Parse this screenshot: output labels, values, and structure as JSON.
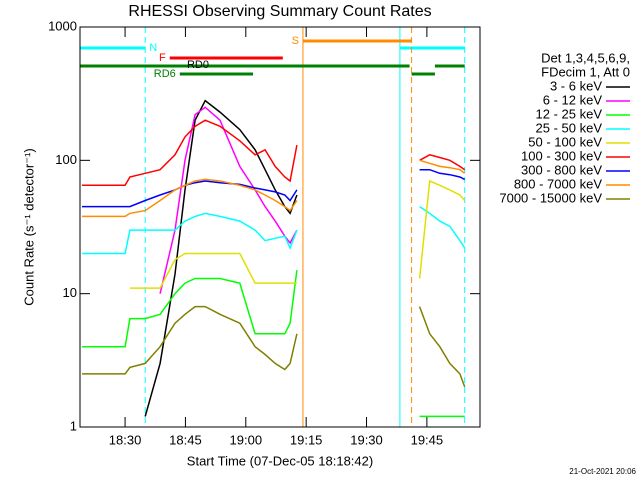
{
  "chart_data": {
    "type": "line",
    "title": "RHESSI Observing Summary Count Rates",
    "xlabel": "Start Time (07-Dec-05 18:18:42)",
    "ylabel": "Count Rate (s⁻¹ detector⁻¹)",
    "timestamp": "21-Oct-2021 20:06",
    "legend_header": [
      "Det 1,3,4,5,6,9,",
      "FDecim 1, Att 0"
    ],
    "ylog": true,
    "xlim": [
      18.8,
      118.2
    ],
    "ylim": [
      1,
      1000
    ],
    "yticks": [
      1,
      10,
      100,
      1000
    ],
    "xticks": [
      {
        "value": 30,
        "label": "18:30"
      },
      {
        "value": 45,
        "label": "18:45"
      },
      {
        "value": 60,
        "label": "19:00"
      },
      {
        "value": 75,
        "label": "19:15"
      },
      {
        "value": 90,
        "label": "19:30"
      },
      {
        "value": 105,
        "label": "19:45"
      }
    ],
    "x": [
      19.3,
      23.8,
      30,
      31.2,
      35,
      38.7,
      42.4,
      44.9,
      47.4,
      49.9,
      53.6,
      58.5,
      62.3,
      64.8,
      67.3,
      69.7,
      71,
      72.7,
      88,
      103.2,
      105.7,
      108.2,
      110.7,
      113.2,
      114.4
    ],
    "series": [
      {
        "name": "3 - 6 keV",
        "color": "#000000",
        "values": [
          null,
          null,
          null,
          null,
          1.2,
          3,
          14,
          60,
          200,
          280,
          230,
          170,
          120,
          85,
          60,
          45,
          40,
          55,
          null,
          null,
          null,
          null,
          null,
          null,
          null
        ]
      },
      {
        "name": "6 - 12 keV",
        "color": "#ff00ff",
        "values": [
          null,
          null,
          null,
          null,
          null,
          10,
          30,
          100,
          220,
          250,
          200,
          90,
          60,
          45,
          35,
          27,
          24,
          30,
          null,
          null,
          null,
          null,
          null,
          null,
          null
        ]
      },
      {
        "name": "12 - 25 keV",
        "color": "#00ff00",
        "values": [
          4,
          4,
          4,
          6.5,
          6.5,
          7,
          10,
          12,
          13,
          13,
          13,
          12,
          5,
          5,
          5,
          5,
          6,
          15,
          null,
          1.2,
          1.2,
          1.2,
          1.2,
          1.2,
          1.2
        ]
      },
      {
        "name": "25 - 50 keV",
        "color": "#00ffff",
        "values": [
          20,
          20,
          20,
          30,
          30,
          30,
          30,
          35,
          38,
          40,
          38,
          35,
          30,
          25,
          26,
          27,
          22,
          30,
          null,
          45,
          40,
          35,
          32,
          25,
          22
        ]
      },
      {
        "name": "50 - 100 keV",
        "color": "#e0e000",
        "values": [
          null,
          null,
          null,
          11,
          11,
          11,
          18,
          20,
          20,
          20,
          20,
          20,
          12,
          12,
          12,
          12,
          12,
          12,
          null,
          13,
          70,
          65,
          60,
          55,
          50
        ]
      },
      {
        "name": "100 - 300 keV",
        "color": "#ff0000",
        "values": [
          65,
          65,
          65,
          75,
          80,
          85,
          110,
          150,
          180,
          200,
          180,
          140,
          110,
          120,
          90,
          75,
          70,
          130,
          null,
          100,
          110,
          105,
          100,
          90,
          85
        ]
      },
      {
        "name": "300 - 800 keV",
        "color": "#0000ff",
        "values": [
          45,
          45,
          45,
          45,
          50,
          55,
          60,
          65,
          68,
          70,
          68,
          66,
          62,
          60,
          58,
          55,
          50,
          60,
          null,
          85,
          85,
          80,
          78,
          75,
          72
        ]
      },
      {
        "name": "800 - 7000 keV",
        "color": "#ff8c00",
        "values": [
          38,
          38,
          38,
          40,
          42,
          50,
          60,
          65,
          70,
          72,
          70,
          65,
          60,
          55,
          50,
          45,
          42,
          50,
          null,
          100,
          95,
          90,
          88,
          85,
          80
        ]
      },
      {
        "name": "7000 - 15000 keV",
        "color": "#808000",
        "values": [
          2.5,
          2.5,
          2.5,
          2.8,
          3,
          4,
          6,
          7,
          8,
          8,
          7,
          6,
          4,
          3.5,
          3,
          2.7,
          3,
          5,
          null,
          8,
          5,
          4,
          3,
          2.5,
          2
        ]
      }
    ],
    "flags": [
      {
        "label": "N",
        "color": "#00ffff",
        "segments": [
          [
            18.8,
            35
          ],
          [
            98.3,
            114.4
          ]
        ]
      },
      {
        "label": "F",
        "color": "#ff0000",
        "segments": [
          [
            41.1,
            69.2
          ]
        ]
      },
      {
        "label": "S",
        "color": "#ff8c00",
        "segments": [
          [
            74.2,
            101.2
          ]
        ]
      },
      {
        "label": "RD0",
        "color": "#008000",
        "segments": [
          [
            18.8,
            100.7
          ],
          [
            107,
            114.4
          ]
        ]
      },
      {
        "label": "RD6",
        "color": "#008000",
        "segments": [
          [
            43.6,
            61.8
          ],
          [
            101.2,
            107
          ]
        ]
      }
    ]
  }
}
